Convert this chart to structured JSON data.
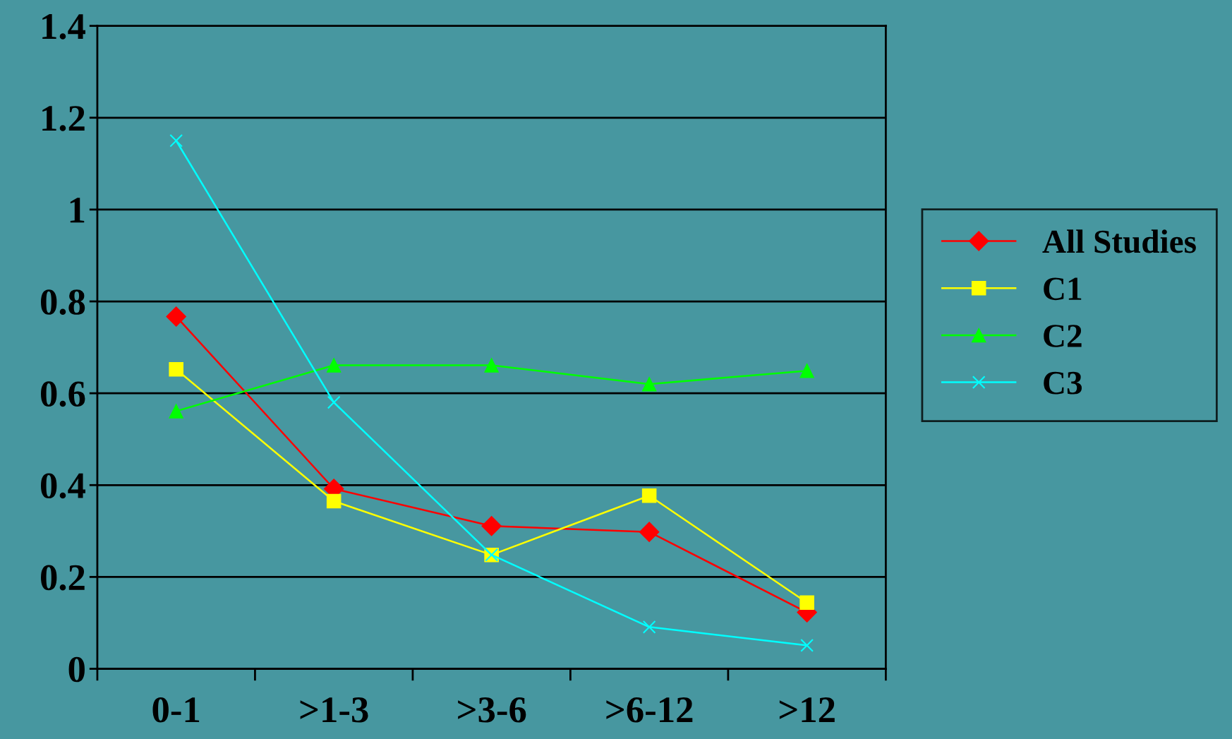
{
  "chart_data": {
    "type": "line",
    "categories": [
      "0-1",
      ">1-3",
      ">3-6",
      ">6-12",
      ">12"
    ],
    "ylim": [
      0,
      1.4
    ],
    "yticks": [
      0,
      0.2,
      0.4,
      0.6,
      0.8,
      1,
      1.2,
      1.4
    ],
    "grid": "y",
    "legend": "right",
    "series": [
      {
        "name": "All Studies",
        "color": "#ff0000",
        "marker": "diamond",
        "values": [
          0.767,
          0.392,
          0.311,
          0.298,
          0.123
        ]
      },
      {
        "name": "C1",
        "color": "#ffff00",
        "marker": "square",
        "values": [
          0.652,
          0.365,
          0.248,
          0.377,
          0.144
        ]
      },
      {
        "name": "C2",
        "color": "#00ff00",
        "marker": "triangle",
        "values": [
          0.561,
          0.661,
          0.661,
          0.62,
          0.649
        ]
      },
      {
        "name": "C3",
        "color": "#00ffff",
        "marker": "cross",
        "values": [
          1.15,
          0.58,
          0.248,
          0.091,
          0.051
        ]
      }
    ]
  }
}
